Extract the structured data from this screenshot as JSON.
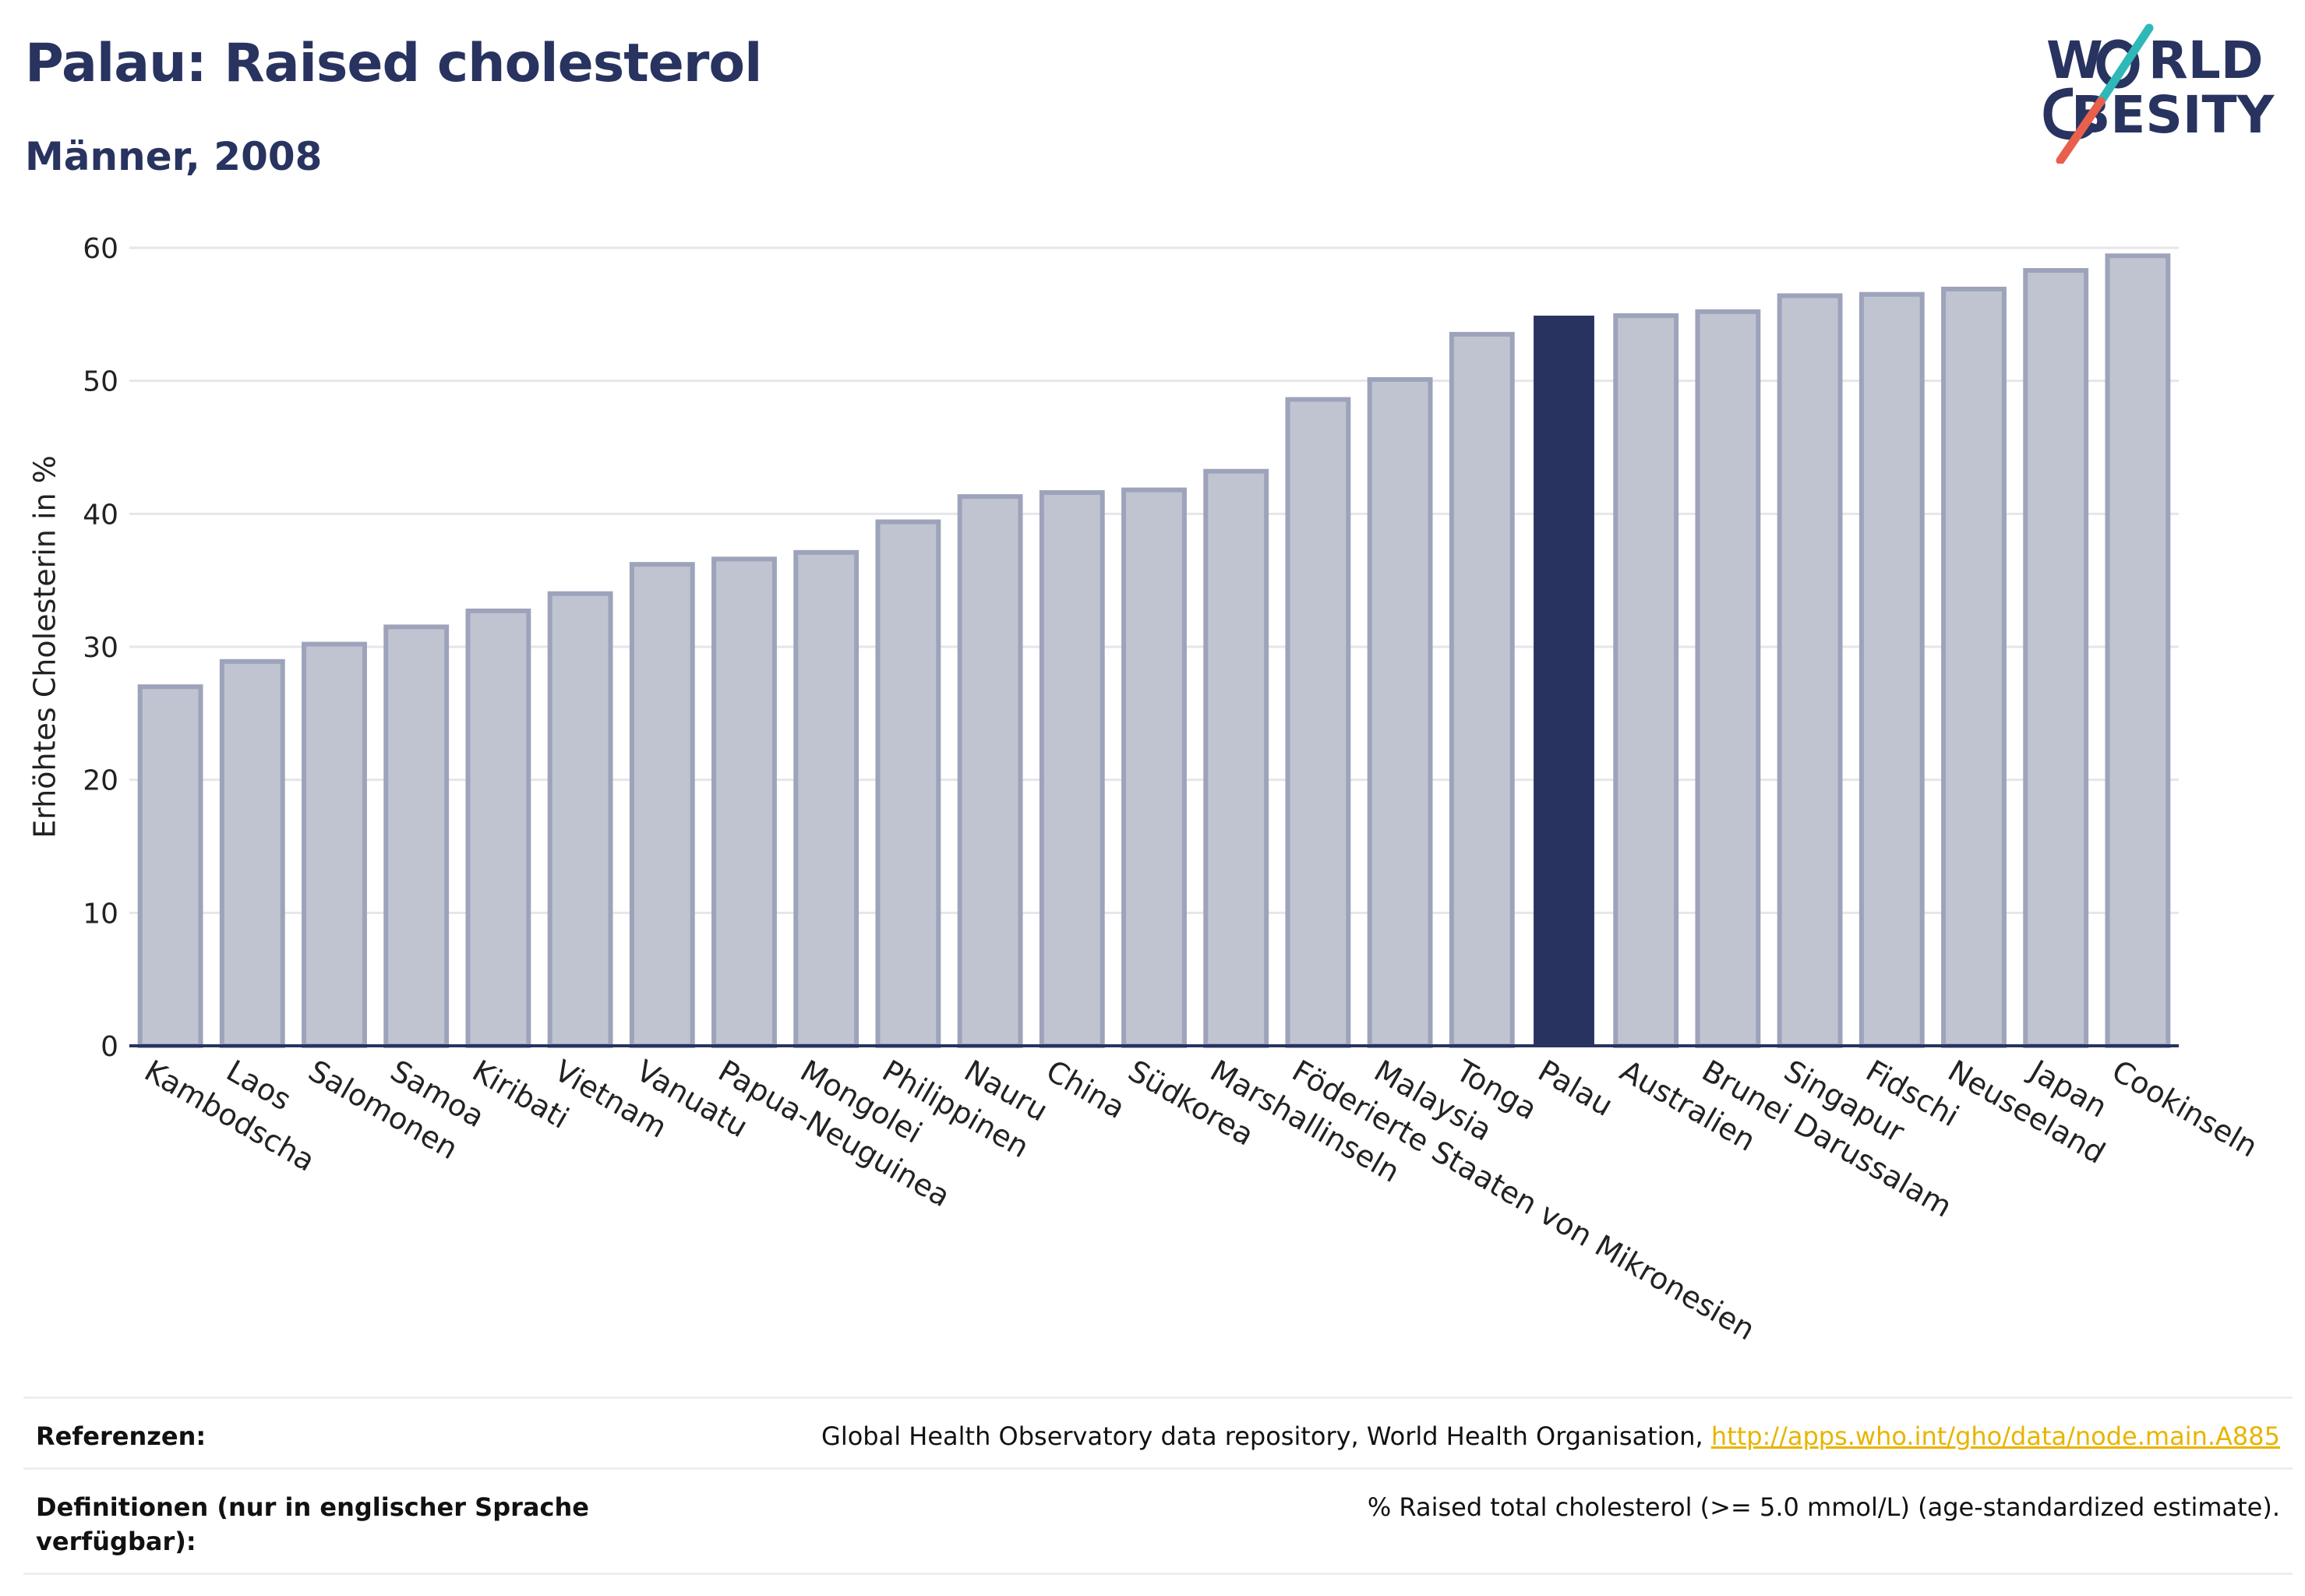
{
  "header": {
    "title": "Palau: Raised cholesterol",
    "subtitle": "Männer, 2008"
  },
  "logo": {
    "line1": "WORLD",
    "line2": "OBESITY",
    "line1_prefix": "W",
    "line1_rest": "RLD",
    "line2_rest": "BESITY",
    "slash_colors": [
      "#2fb8b8",
      "#e8604c"
    ]
  },
  "chart_data": {
    "type": "bar",
    "ylabel": "Erhöhtes Cholesterin in %",
    "xlabel": "",
    "ylim": [
      0,
      60
    ],
    "yticks": [
      0,
      10,
      20,
      30,
      40,
      50,
      60
    ],
    "grid": true,
    "highlight": "Palau",
    "categories": [
      "Kambodscha",
      "Laos",
      "Salomonen",
      "Samoa",
      "Kiribati",
      "Vietnam",
      "Vanuatu",
      "Papua-Neuguinea",
      "Mongolei",
      "Philippinen",
      "Nauru",
      "China",
      "Südkorea",
      "Marshallinseln",
      "Föderierte Staaten von Mikronesien",
      "Malaysia",
      "Tonga",
      "Palau",
      "Australien",
      "Brunei Darussalam",
      "Singapur",
      "Fidschi",
      "Neuseeland",
      "Japan",
      "Cookinseln"
    ],
    "values": [
      27.0,
      28.9,
      30.2,
      31.5,
      32.7,
      34.0,
      36.2,
      36.6,
      37.1,
      39.4,
      41.3,
      41.6,
      41.8,
      43.2,
      48.6,
      50.1,
      53.5,
      54.9,
      54.9,
      55.2,
      56.4,
      56.5,
      56.9,
      58.3,
      59.4
    ],
    "colors": {
      "bar": "#c0c4d1",
      "bar_border": "#9da3ba",
      "highlight": "#283360",
      "axis": "#283360",
      "grid": "#e6e6ea"
    }
  },
  "references": [
    {
      "label": "Referenzen:",
      "text": "Global Health Observatory data repository, World Health Organisation, ",
      "link": "http://apps.who.int/gho/data/node.main.A885"
    },
    {
      "label": "Definitionen (nur in englischer Sprache verfügbar):",
      "text": "% Raised total cholesterol (>= 5.0 mmol/L) (age-standardized estimate).",
      "link": ""
    }
  ]
}
